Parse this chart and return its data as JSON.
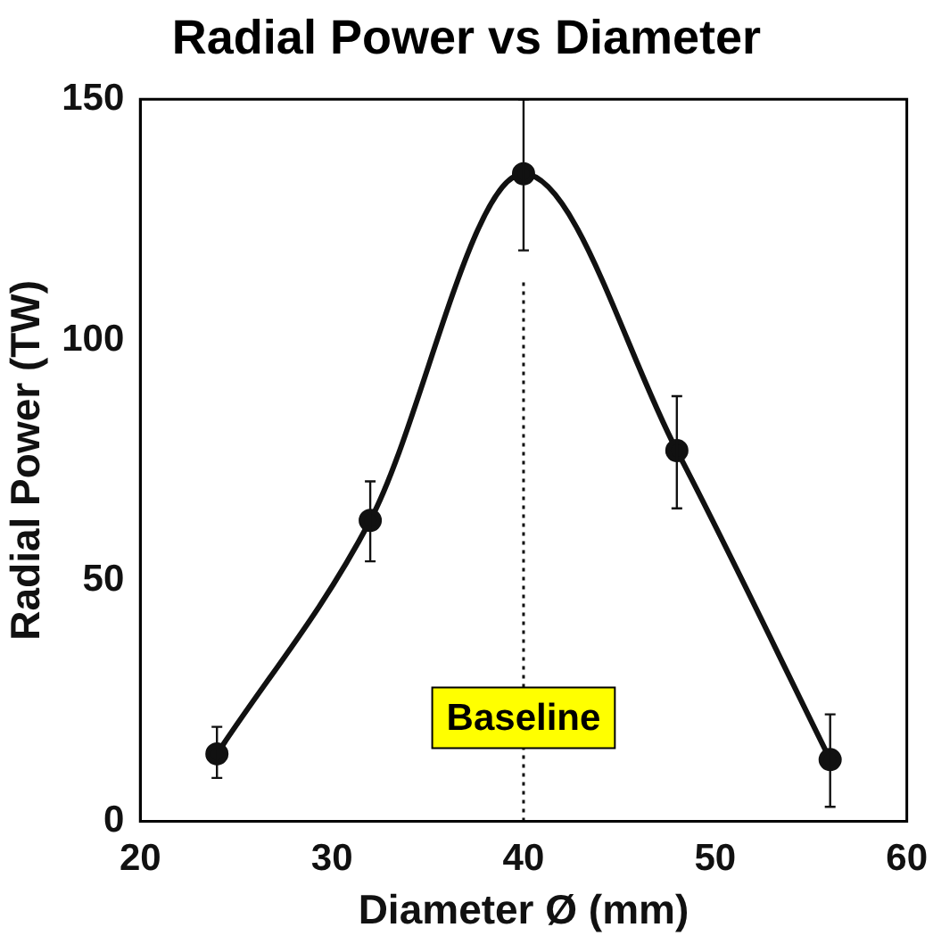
{
  "chart_data": {
    "type": "line",
    "title": "Radial Power vs Diameter",
    "xlabel": "Diameter Ø (mm)",
    "ylabel": "Radial Power (TW)",
    "x": [
      24,
      32,
      40,
      48,
      56
    ],
    "series": [
      {
        "color": "#111111",
        "values": [
          14,
          62.5,
          134.5,
          77,
          12.8
        ],
        "errors": [
          [
            9,
            19.6
          ],
          [
            54,
            70.6
          ],
          [
            118.6,
            150
          ],
          [
            65,
            88.3
          ],
          [
            3,
            22.2
          ]
        ]
      }
    ],
    "xlim": [
      20,
      60
    ],
    "xticks": [
      20,
      30,
      40,
      50,
      60
    ],
    "ylim": [
      0,
      150
    ],
    "yticks": [
      0,
      50,
      100,
      150
    ],
    "grid": false,
    "legend": false,
    "marker": "circle",
    "line_style": "solid",
    "ref_lines": [
      {
        "axis": "x",
        "value": 40,
        "label": "Baseline",
        "color": "#111111",
        "line_style": "dotted"
      }
    ]
  }
}
